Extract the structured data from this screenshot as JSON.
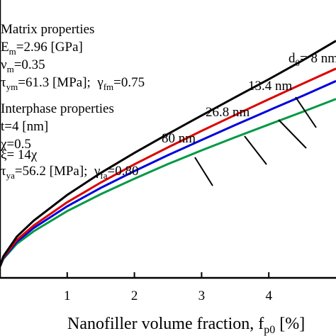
{
  "chart_data": {
    "type": "line",
    "title": "",
    "xlabel": "Nanofiller volume fraction, f",
    "xlabel_sub": "p0",
    "xlabel_suffix": " [%]",
    "ylabel": "",
    "xlim": [
      0,
      5
    ],
    "ylim": [
      0,
      1
    ],
    "x_ticks": [
      "1",
      "2",
      "3",
      "4"
    ],
    "x_tick_values": [
      1,
      2,
      3,
      4
    ],
    "grid": false,
    "colors": {
      "d8": "#000000",
      "d13": "#dd0000",
      "d26": "#0000dd",
      "d80": "#009944"
    },
    "x": [
      0,
      0.05,
      0.25,
      0.5,
      1,
      1.5,
      2,
      2.5,
      3,
      3.5,
      4,
      4.5,
      5
    ],
    "series": [
      {
        "key": "d8",
        "label": "d0= 8 nm",
        "values": [
          0,
          0.04,
          0.118,
          0.181,
          0.283,
          0.37,
          0.449,
          0.524,
          0.597,
          0.669,
          0.74,
          0.814,
          0.892
        ]
      },
      {
        "key": "d13",
        "label": "13.4 nm",
        "values": [
          0,
          0.036,
          0.105,
          0.162,
          0.254,
          0.332,
          0.404,
          0.471,
          0.536,
          0.599,
          0.661,
          0.722,
          0.782
        ]
      },
      {
        "key": "d26",
        "label": "26.8 nm",
        "values": [
          0,
          0.033,
          0.098,
          0.152,
          0.238,
          0.311,
          0.377,
          0.44,
          0.5,
          0.559,
          0.617,
          0.674,
          0.733
        ]
      },
      {
        "key": "d80",
        "label": "80 nm",
        "values": [
          0,
          0.03,
          0.09,
          0.139,
          0.219,
          0.286,
          0.347,
          0.405,
          0.459,
          0.511,
          0.561,
          0.611,
          0.662
        ]
      }
    ],
    "matrix": {
      "heading": "Matrix properties",
      "line1": {
        "sym": "E",
        "sub": "m",
        "rest": "=2.96 [GPa]"
      },
      "line2": {
        "sym": "ν",
        "sub": "m",
        "rest": "=0.35"
      },
      "line3": {
        "sym": "τ",
        "sub": "ym",
        "rest": "=61.3 [MPa];  ",
        "sym2": "γ",
        "sub2": "fm",
        "rest2": "=0.75"
      }
    },
    "interphase": {
      "heading": "Interphase properties",
      "line1": "t=4 [nm]",
      "line2": "χ=0.5",
      "line3": "ξ= 14χ",
      "line4": {
        "sym": "τ",
        "sub": "ya",
        "rest": "=56.2 [MPa];  ",
        "sym2": "γ",
        "sub2": "fa",
        "rest2": "=0.80"
      }
    }
  }
}
